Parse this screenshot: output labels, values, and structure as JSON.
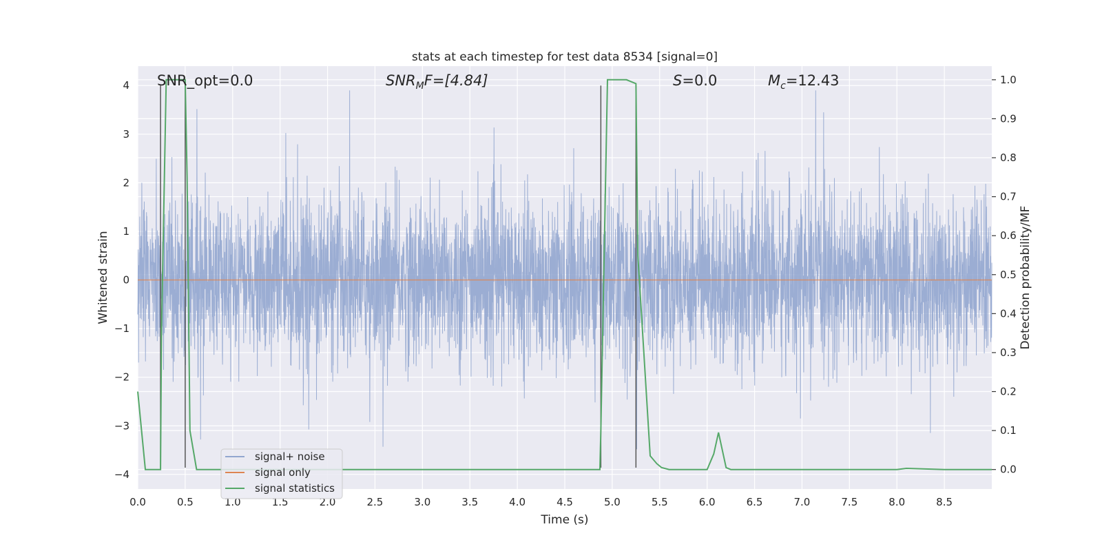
{
  "chart_data": {
    "type": "line",
    "title": "stats at each timestep for test data 8534 [signal=0]",
    "xlabel": "Time (s)",
    "ylabel": "Whitened strain",
    "y2label": "Detection probability/MF",
    "xlim": [
      0.0,
      9.0
    ],
    "ylim": [
      -4.3,
      4.4
    ],
    "y2lim": [
      -0.05,
      1.035
    ],
    "x_ticks": [
      0.0,
      0.5,
      1.0,
      1.5,
      2.0,
      2.5,
      3.0,
      3.5,
      4.0,
      4.5,
      5.0,
      5.5,
      6.0,
      6.5,
      7.0,
      7.5,
      8.0,
      8.5
    ],
    "x_tick_labels": [
      "0.0",
      "0.5",
      "1.0",
      "1.5",
      "2.0",
      "2.5",
      "3.0",
      "3.5",
      "4.0",
      "4.5",
      "5.0",
      "5.5",
      "6.0",
      "6.5",
      "7.0",
      "7.5",
      "8.0",
      "8.5"
    ],
    "y_ticks": [
      4,
      3,
      2,
      1,
      0,
      -1,
      -2,
      -3,
      -4
    ],
    "y_tick_labels": [
      "4",
      "3",
      "2",
      "1",
      "0",
      "−1",
      "−2",
      "−3",
      "−4"
    ],
    "y2_ticks": [
      1.0,
      0.9,
      0.8,
      0.7,
      0.6,
      0.5,
      0.4,
      0.3,
      0.2,
      0.1,
      0.0
    ],
    "y2_tick_labels": [
      "1.0",
      "0.9",
      "0.8",
      "0.7",
      "0.6",
      "0.5",
      "0.4",
      "0.3",
      "0.2",
      "0.1",
      "0.0"
    ],
    "grid": true,
    "legend_placement": "lower-left",
    "annotations": {
      "snr_opt": "SNR_opt=0.0",
      "snr_mf_sym": "SNR",
      "snr_mf_sub": "M",
      "snr_mf_tail": "F=[4.84]",
      "s_sym": "S",
      "s_val": "=0.0",
      "mc_sym": "M",
      "mc_sub": "c",
      "mc_val": "=12.43"
    },
    "series": [
      {
        "name": "signal+ noise",
        "color": "#92a6cf",
        "description": "dense whitened noise, mostly within ±1.5, spikes up to about ±4"
      },
      {
        "name": "signal only",
        "color": "#dd8452",
        "y_constant": 0.0
      },
      {
        "name": "signal statistics",
        "color": "#55a868",
        "axis": "right",
        "x": [
          0.0,
          0.08,
          0.2,
          0.24,
          0.25,
          0.3,
          0.5,
          0.52,
          0.55,
          0.62,
          0.65,
          1.0,
          2.0,
          2.5,
          3.0,
          4.0,
          4.5,
          4.87,
          4.88,
          4.95,
          5.0,
          5.15,
          5.25,
          5.27,
          5.4,
          5.47,
          5.52,
          5.6,
          6.0,
          6.07,
          6.12,
          6.2,
          6.25,
          7.0,
          7.5,
          8.0,
          8.1,
          8.5,
          9.0
        ],
        "y": [
          0.2,
          0.0,
          0.0,
          0.0,
          0.35,
          1.0,
          1.0,
          0.75,
          0.1,
          0.0,
          0.0,
          0.0,
          0.0,
          0.0,
          0.0,
          0.0,
          0.0,
          0.0,
          0.1,
          1.0,
          1.0,
          1.0,
          0.99,
          0.55,
          0.035,
          0.015,
          0.005,
          0.0,
          0.0,
          0.04,
          0.095,
          0.005,
          0.0,
          0.0,
          0.0,
          0.0,
          0.003,
          0.0,
          0.0
        ]
      }
    ],
    "markers": [
      {
        "x": 0.24,
        "y_top": 4.0,
        "y_bottom": -3.86
      },
      {
        "x": 0.5,
        "y_top": 4.0,
        "y_bottom": -3.86
      },
      {
        "x": 4.88,
        "y_top": 4.0,
        "y_bottom": -3.86
      },
      {
        "x": 5.25,
        "y_top": 4.0,
        "y_bottom": -3.86
      }
    ],
    "colors": {
      "plot_background": "#eaeaf2",
      "grid": "#ffffff",
      "marker_lines": "#555555"
    }
  }
}
